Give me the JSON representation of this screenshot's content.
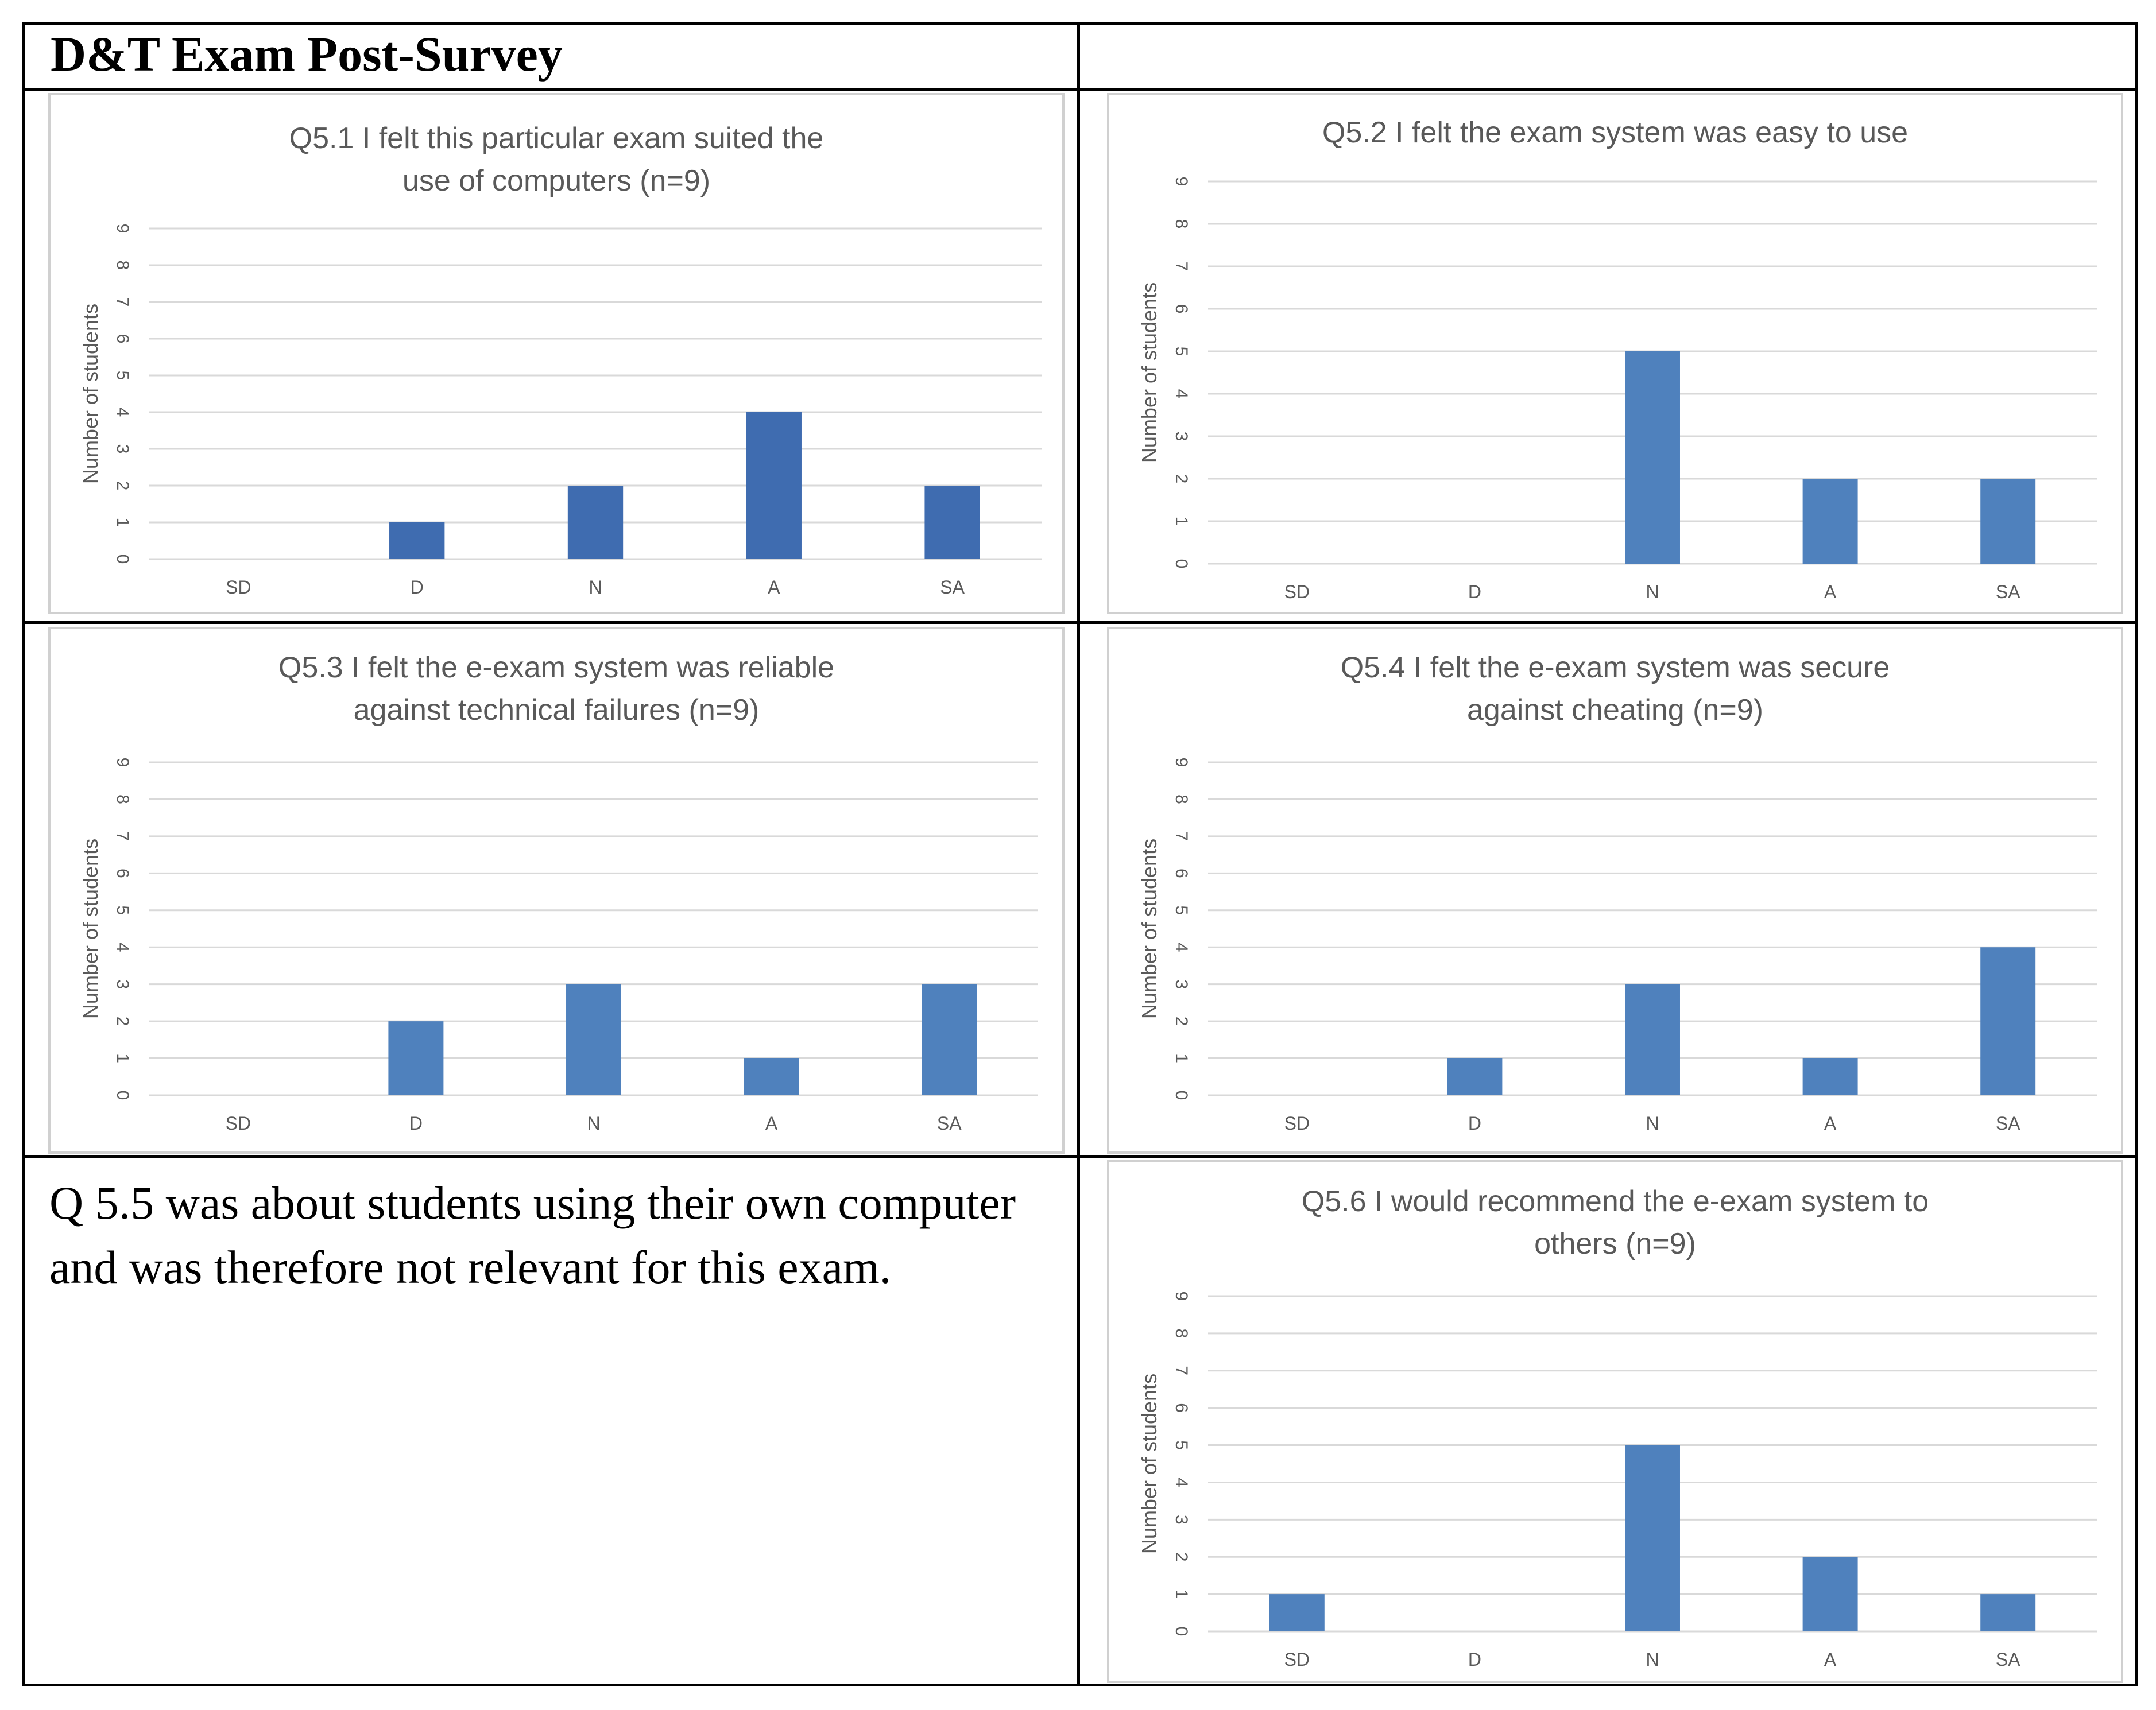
{
  "page": {
    "heading": "D&T Exam Post-Survey",
    "note": "Q 5.5 was about students using their own computer and was therefore not relevant for this exam."
  },
  "colors": {
    "bar_dark": "#3f6cb0",
    "bar_light": "#4f81bd",
    "gridline": "#d9d9d9",
    "text": "#595959",
    "border": "#000000"
  },
  "chart_data": [
    {
      "id": "q51",
      "type": "bar",
      "title": "Q5.1 I felt this particular exam suited the use of computers (n=9)",
      "xlabel": "",
      "ylabel": "Number of students",
      "categories": [
        "SD",
        "D",
        "N",
        "A",
        "SA"
      ],
      "values": [
        0,
        1,
        2,
        4,
        2
      ],
      "ylim": [
        0,
        9
      ],
      "yticks": [
        "0",
        "1",
        "2",
        "3",
        "4",
        "5",
        "6",
        "7",
        "8",
        "9"
      ],
      "grid": true,
      "color": "#3f6cb0"
    },
    {
      "id": "q52",
      "type": "bar",
      "title": "Q5.2 I felt the exam system was easy to use",
      "xlabel": "",
      "ylabel": "Number of students",
      "categories": [
        "SD",
        "D",
        "N",
        "A",
        "SA"
      ],
      "values": [
        0,
        0,
        5,
        2,
        2
      ],
      "ylim": [
        0,
        9
      ],
      "yticks": [
        "0",
        "1",
        "2",
        "3",
        "4",
        "5",
        "6",
        "7",
        "8",
        "9"
      ],
      "grid": true,
      "color": "#4f81bd"
    },
    {
      "id": "q53",
      "type": "bar",
      "title": "Q5.3 I felt the e-exam system was reliable against technical failures (n=9)",
      "xlabel": "",
      "ylabel": "Number of students",
      "categories": [
        "SD",
        "D",
        "N",
        "A",
        "SA"
      ],
      "values": [
        0,
        2,
        3,
        1,
        3
      ],
      "ylim": [
        0,
        9
      ],
      "yticks": [
        "0",
        "1",
        "2",
        "3",
        "4",
        "5",
        "6",
        "7",
        "8",
        "9"
      ],
      "grid": true,
      "color": "#4f81bd"
    },
    {
      "id": "q54",
      "type": "bar",
      "title": "Q5.4 I felt the e-exam system was secure against cheating (n=9)",
      "xlabel": "",
      "ylabel": "Number of students",
      "categories": [
        "SD",
        "D",
        "N",
        "A",
        "SA"
      ],
      "values": [
        0,
        1,
        3,
        1,
        4
      ],
      "ylim": [
        0,
        9
      ],
      "yticks": [
        "0",
        "1",
        "2",
        "3",
        "4",
        "5",
        "6",
        "7",
        "8",
        "9"
      ],
      "grid": true,
      "color": "#4f81bd"
    },
    {
      "id": "q56",
      "type": "bar",
      "title": "Q5.6 I would recommend the e-exam system to others (n=9)",
      "xlabel": "",
      "ylabel": "Number of students",
      "categories": [
        "SD",
        "D",
        "N",
        "A",
        "SA"
      ],
      "values": [
        1,
        0,
        5,
        2,
        1
      ],
      "ylim": [
        0,
        9
      ],
      "yticks": [
        "0",
        "1",
        "2",
        "3",
        "4",
        "5",
        "6",
        "7",
        "8",
        "9"
      ],
      "grid": true,
      "color": "#4f81bd"
    }
  ]
}
